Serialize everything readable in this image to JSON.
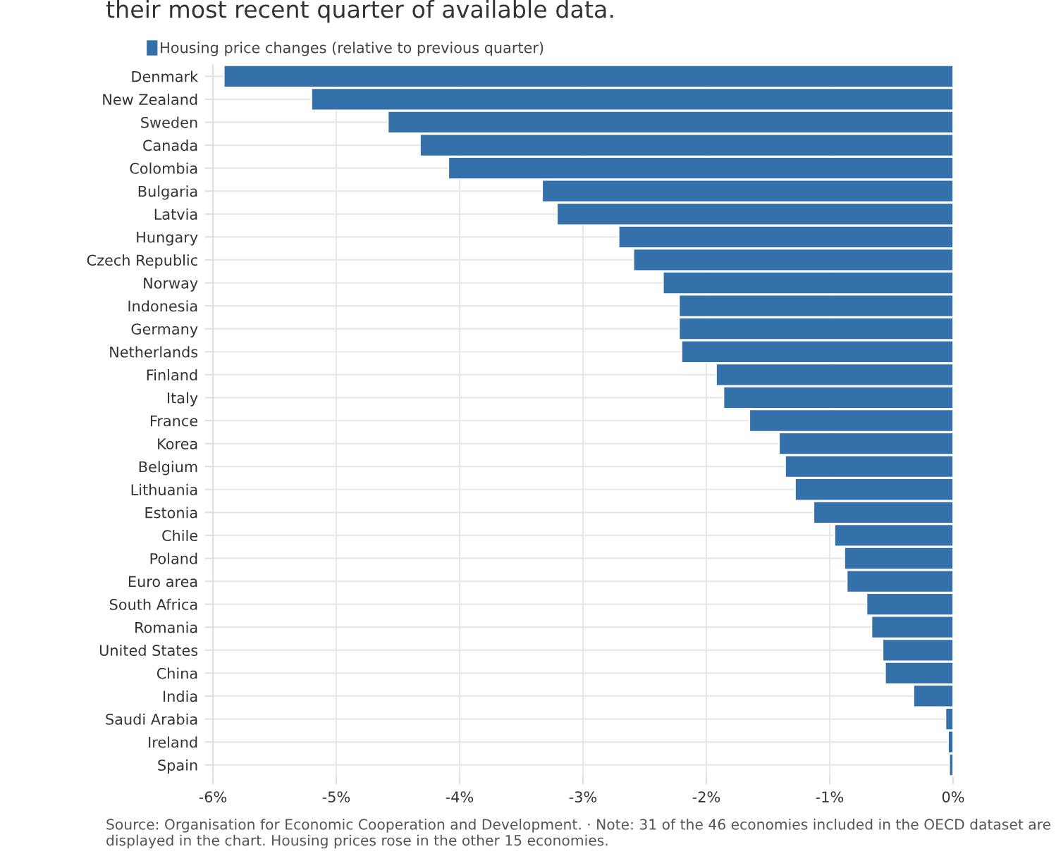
{
  "chart_data": {
    "type": "bar",
    "orientation": "horizontal",
    "subtitle": "their most recent quarter of available data.",
    "categories": [
      "Denmark",
      "New Zealand",
      "Sweden",
      "Canada",
      "Colombia",
      "Bulgaria",
      "Latvia",
      "Hungary",
      "Czech Republic",
      "Norway",
      "Indonesia",
      "Germany",
      "Netherlands",
      "Finland",
      "Italy",
      "France",
      "Korea",
      "Belgium",
      "Lithuania",
      "Estonia",
      "Chile",
      "Poland",
      "Euro area",
      "South Africa",
      "Romania",
      "United States",
      "China",
      "India",
      "Saudi Arabia",
      "Ireland",
      "Spain"
    ],
    "series": [
      {
        "name": "Housing price changes (relative to previous quarter)",
        "color": "#3470aa",
        "values": [
          -5.91,
          -5.2,
          -4.58,
          -4.32,
          -4.09,
          -3.33,
          -3.21,
          -2.71,
          -2.59,
          -2.35,
          -2.22,
          -2.22,
          -2.2,
          -1.92,
          -1.86,
          -1.65,
          -1.41,
          -1.36,
          -1.28,
          -1.13,
          -0.96,
          -0.88,
          -0.86,
          -0.7,
          -0.66,
          -0.57,
          -0.55,
          -0.32,
          -0.06,
          -0.04,
          -0.03
        ]
      }
    ],
    "xlim": [
      -6,
      0
    ],
    "xticks": [
      {
        "value": -6,
        "label": "-6%"
      },
      {
        "value": -5,
        "label": "-5%"
      },
      {
        "value": -4,
        "label": "-4%"
      },
      {
        "value": -3,
        "label": "-3%"
      },
      {
        "value": -2,
        "label": "-2%"
      },
      {
        "value": -1,
        "label": "-1%"
      },
      {
        "value": 0,
        "label": "0%"
      }
    ],
    "grid": true,
    "legend": "top left",
    "annotations": [
      "Source: Organisation for Economic Cooperation and Development. · Note: 31 of the 46 economies included in the OECD dataset are displayed in the chart. Housing prices rose in the other 15 economies."
    ]
  }
}
